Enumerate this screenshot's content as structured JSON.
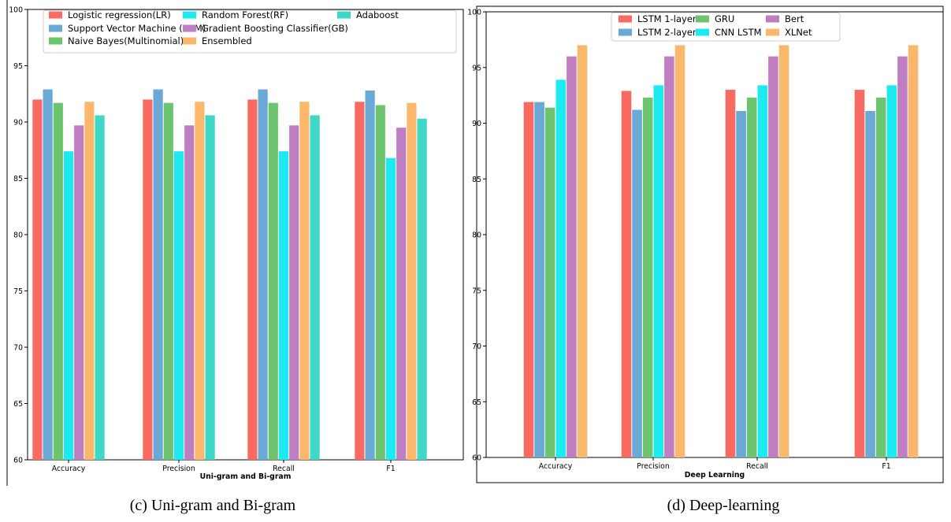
{
  "chart_data": [
    {
      "type": "bar",
      "caption": "(c) Uni-gram and Bi-gram",
      "xlabel": "Uni-gram and Bi-gram",
      "ylabel": "",
      "ylim": [
        60,
        100
      ],
      "yticks": [
        60,
        65,
        70,
        75,
        80,
        85,
        90,
        95,
        100
      ],
      "categories": [
        "Accuracy",
        "Precision",
        "Recall",
        "F1"
      ],
      "legend_position": "top",
      "legend_columns": 3,
      "grid": false,
      "series": [
        {
          "name": "Logistic regression(LR)",
          "color": "#f96b62",
          "values": [
            92.0,
            92.0,
            92.0,
            91.8
          ]
        },
        {
          "name": "Support Vector Machine (SVM)",
          "color": "#6aa8d6",
          "values": [
            92.9,
            92.9,
            92.9,
            92.8
          ]
        },
        {
          "name": "Naive Bayes(Multinomial)",
          "color": "#6ec46e",
          "values": [
            91.7,
            91.7,
            91.7,
            91.5
          ]
        },
        {
          "name": "Random Forest(RF)",
          "color": "#1de9f0",
          "values": [
            87.4,
            87.4,
            87.4,
            86.8
          ]
        },
        {
          "name": "Gradient Boosting Classifier(GB)",
          "color": "#c07ec2",
          "values": [
            89.7,
            89.7,
            89.7,
            89.5
          ]
        },
        {
          "name": "Ensembled",
          "color": "#fbb86c",
          "values": [
            91.8,
            91.8,
            91.8,
            91.7
          ]
        },
        {
          "name": "Adaboost",
          "color": "#3fd8c8",
          "values": [
            90.6,
            90.6,
            90.6,
            90.3
          ]
        }
      ]
    },
    {
      "type": "bar",
      "caption": "(d) Deep-learning",
      "xlabel": "Deep Learning",
      "ylabel": "",
      "ylim": [
        60,
        100
      ],
      "yticks": [
        60,
        65,
        70,
        75,
        80,
        85,
        90,
        95,
        100
      ],
      "categories": [
        "Accuracy",
        "Precision",
        "Recall",
        "F1"
      ],
      "legend_position": "top",
      "legend_columns": 3,
      "grid": false,
      "series": [
        {
          "name": "LSTM 1-layer",
          "color": "#f96b62",
          "values": [
            91.9,
            92.9,
            93.0,
            93.0
          ]
        },
        {
          "name": "LSTM 2-layer",
          "color": "#6aa8d6",
          "values": [
            91.9,
            91.2,
            91.1,
            91.1
          ]
        },
        {
          "name": "GRU",
          "color": "#6ec46e",
          "values": [
            91.4,
            92.3,
            92.3,
            92.3
          ]
        },
        {
          "name": "CNN LSTM",
          "color": "#1de9f0",
          "values": [
            93.9,
            93.4,
            93.4,
            93.4
          ]
        },
        {
          "name": "Bert",
          "color": "#c07ec2",
          "values": [
            96.0,
            96.0,
            96.0,
            96.0
          ]
        },
        {
          "name": "XLNet",
          "color": "#fbb86c",
          "values": [
            97.0,
            97.0,
            97.0,
            97.0
          ]
        }
      ]
    }
  ]
}
